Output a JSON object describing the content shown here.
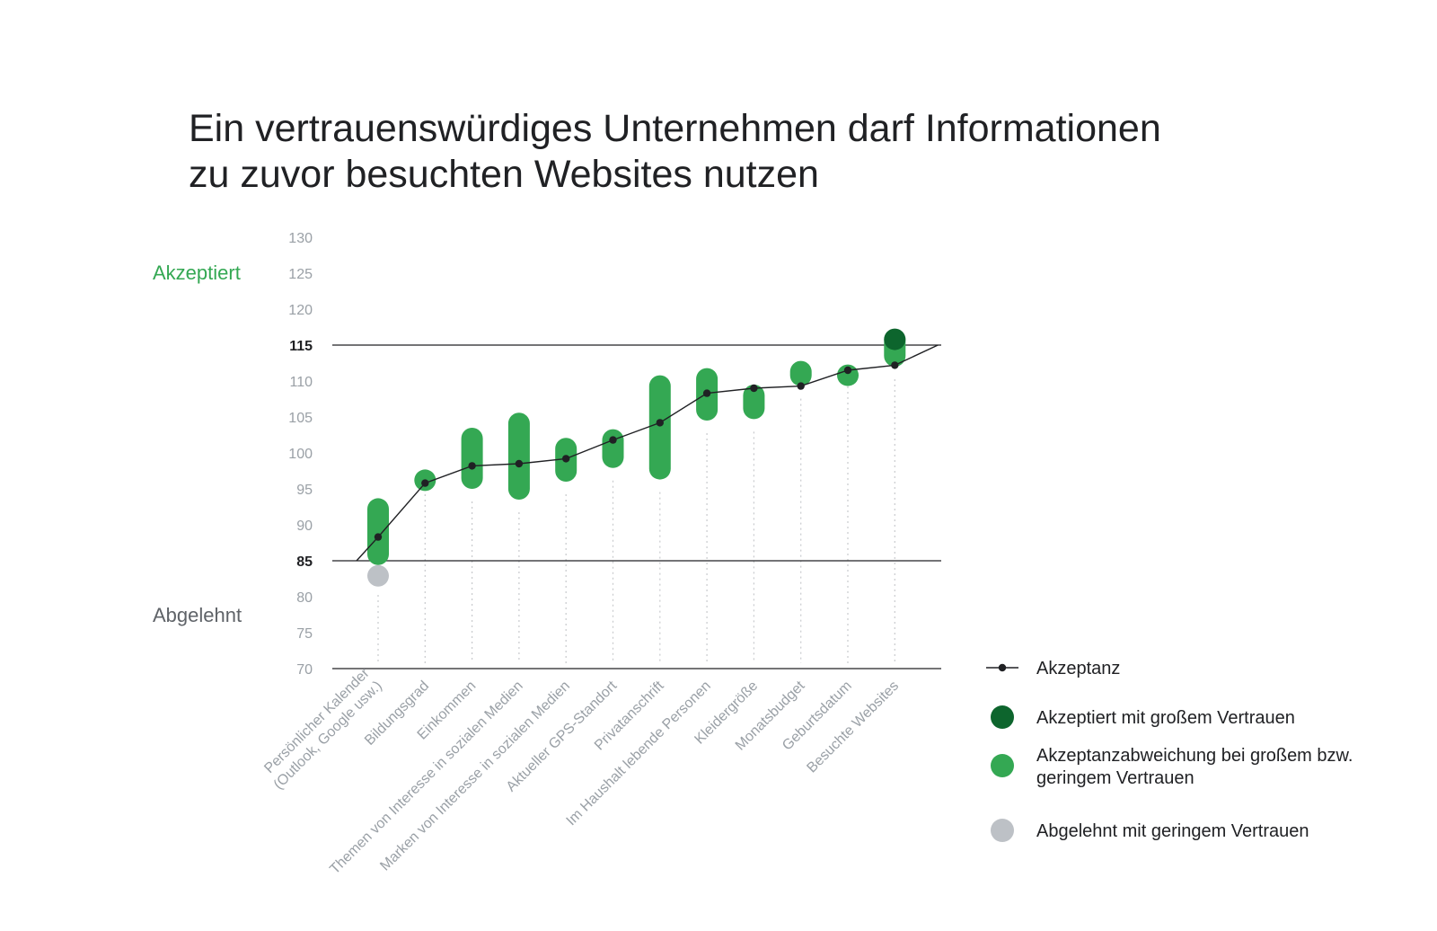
{
  "title_lines": [
    "Ein vertrauenswürdiges Unternehmen darf Informationen",
    "zu zuvor besuchten Websites nutzen"
  ],
  "zone_labels": {
    "accepted": "Akzeptiert",
    "rejected": "Abgelehnt"
  },
  "colors": {
    "accepted_label": "#34a853",
    "rejected_label": "#5f6368",
    "range": "#34a853",
    "high_trust": "#0d652d",
    "low_trust": "#bdc1c6",
    "line": "#202124"
  },
  "chart_data": {
    "type": "range-line",
    "ylim": [
      70,
      130
    ],
    "yticks": [
      "130",
      "125",
      "120",
      "115",
      "110",
      "105",
      "100",
      "95",
      "90",
      "85",
      "80",
      "75",
      "70"
    ],
    "bold_ticks": [
      "115",
      "85"
    ],
    "thresholds": [
      115,
      85
    ],
    "categories": [
      [
        "Persönlicher Kalender",
        "(Outlook, Google usw.)"
      ],
      [
        "Bildungsgrad"
      ],
      [
        "Einkommen"
      ],
      [
        "Themen von Interesse in sozialen Medien"
      ],
      [
        "Marken von Interesse in sozialen Medien"
      ],
      [
        "Aktueller GPS-Standort"
      ],
      [
        "Privatanschrift"
      ],
      [
        "Im Haushalt lebende Personen"
      ],
      [
        "Kleidergröße"
      ],
      [
        "Monatsbudget"
      ],
      [
        "Geburtsdatum"
      ],
      [
        "Besuchte Websites"
      ]
    ],
    "series": [
      {
        "name": "Akzeptanz",
        "values": [
          88.3,
          95.8,
          98.2,
          98.5,
          99.2,
          101.8,
          104.2,
          108.3,
          109.0,
          109.3,
          111.5,
          112.2
        ]
      },
      {
        "name": "Akzeptanzabweichung bei großem bzw. geringem Vertrauen",
        "ranges": [
          [
            84.4,
            93.7
          ],
          [
            96.0,
            97.7
          ],
          [
            95.0,
            103.5
          ],
          [
            93.5,
            105.6
          ],
          [
            96.0,
            102.1
          ],
          [
            97.9,
            103.3
          ],
          [
            96.3,
            110.8
          ],
          [
            104.5,
            111.8
          ],
          [
            104.7,
            109.5
          ],
          [
            109.3,
            112.8
          ],
          [
            111.0,
            112.3
          ],
          [
            112.0,
            117.2
          ]
        ]
      },
      {
        "name": "Akzeptiert mit großem Vertrauen",
        "ranges": [
          null,
          null,
          null,
          null,
          null,
          null,
          null,
          null,
          null,
          null,
          null,
          [
            115.0,
            117.3
          ]
        ]
      },
      {
        "name": "Abgelehnt mit geringem Vertrauen",
        "ranges": [
          [
            82.0,
            84.4
          ],
          null,
          null,
          null,
          null,
          null,
          null,
          null,
          null,
          null,
          null,
          null
        ]
      }
    ]
  },
  "legend": [
    {
      "label": "Akzeptanz",
      "kind": "line"
    },
    {
      "label": "Akzeptiert mit großem Vertrauen",
      "kind": "high"
    },
    {
      "label": "Akzeptanzabweichung bei großem bzw. geringem Vertrauen",
      "kind": "range",
      "lines": [
        "Akzeptanzabweichung bei großem bzw.",
        "geringem Vertrauen"
      ]
    },
    {
      "label": "Abgelehnt mit geringem Vertrauen",
      "kind": "low"
    }
  ]
}
